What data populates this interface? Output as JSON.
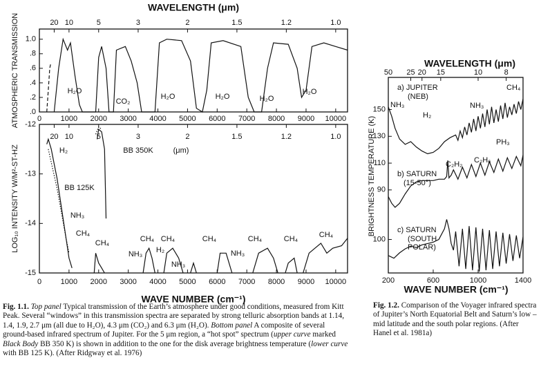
{
  "figure_1": {
    "top_axis_label": "WAVELENGTH (μm)",
    "x_label": "WAVE NUMBER (cm⁻¹)",
    "xlim": [
      0,
      10400
    ],
    "xticks": [
      0,
      1000,
      2000,
      3000,
      4000,
      5000,
      6000,
      7000,
      8000,
      9000,
      10000
    ],
    "wavelength_ticks": [
      20,
      10,
      5,
      3,
      2,
      1.5,
      1.2,
      {
        "value": 1,
        "label": "1.0"
      }
    ],
    "top": {
      "y_label": "ATMOSPHERIC TRANSMISSION",
      "ylim": [
        0,
        1.14
      ],
      "yticks": [
        {
          "value": 0,
          "label": ".0"
        },
        {
          "value": 0.2,
          "label": ".2"
        },
        {
          "value": 0.4,
          "label": ".4"
        },
        {
          "value": 0.6,
          "label": ".6"
        },
        {
          "value": 0.8,
          "label": ".8"
        },
        {
          "value": 1,
          "label": "1.0"
        }
      ],
      "annotations": [
        "H₂O",
        "CO₂",
        "H₂O",
        "H₂O",
        "H₂O",
        "H₂O"
      ],
      "curves": [
        {
          "line": "dashed",
          "x": [
            250,
            300,
            350,
            380
          ],
          "values": [
            0,
            0.3,
            0.6,
            0.66
          ]
        },
        {
          "line": "solid",
          "x": [
            500,
            650,
            800,
            950,
            1050,
            1200,
            1350,
            1450,
            1900,
            2000,
            2100,
            2250,
            2350,
            2500,
            2600,
            2900,
            3100,
            3300,
            3450,
            3900,
            4050,
            4300,
            4800,
            5100,
            5300,
            5500,
            5650,
            5800,
            6200,
            6800,
            7050,
            7250,
            7500,
            7700,
            7900,
            8400,
            8700,
            8850,
            9000,
            9200,
            9600,
            10000,
            10400
          ],
          "values": [
            0,
            0.6,
            1.0,
            0.85,
            0.95,
            0.5,
            0.1,
            0,
            0,
            0.75,
            0.9,
            0.6,
            0,
            0,
            0.85,
            0.9,
            0.7,
            0.4,
            0,
            0,
            0.95,
            1.0,
            0.98,
            0.7,
            0.05,
            0,
            0.3,
            0.95,
            0.98,
            0.9,
            0.2,
            0,
            0,
            0.6,
            0.95,
            0.93,
            0.6,
            0.2,
            0.3,
            0.9,
            0.95,
            0.9,
            0.85
          ]
        }
      ]
    },
    "bottom": {
      "y_label": "LOG₁₀ INTENSITY  W/M²-ST-HZ",
      "ylim": [
        -15,
        -12
      ],
      "yticks": [
        -12,
        -13,
        -14,
        -15
      ],
      "annotations": [
        "H₂",
        "BB 350K",
        "(μm)",
        "BB 125K",
        "NH₃",
        "CH₄",
        "CH₄",
        "CH₄",
        "CH₄",
        "NH₃",
        "H₂",
        "NH₃",
        "CH₄",
        "NH₃",
        "CH₄",
        "CH₄",
        "CH₄"
      ],
      "curves": [
        {
          "line": "solid",
          "x": [
            250,
            300,
            400,
            500,
            600,
            700,
            800,
            900,
            1000,
            1100,
            null,
            1850,
            1900,
            2000,
            2100,
            2200,
            null,
            3500,
            3600,
            3700,
            3800,
            3900,
            null,
            4200,
            4300,
            4500,
            4700,
            4850,
            null,
            5100,
            5200,
            5300,
            null,
            6000,
            6100,
            6300,
            6500,
            null,
            7200,
            7400,
            7700,
            7900,
            8050,
            null,
            8300,
            8400,
            8600,
            8700,
            null,
            8900,
            9100,
            9300,
            9500,
            9700,
            9900,
            10200,
            10400
          ],
          "values": [
            -12.4,
            -12.3,
            -12.5,
            -12.8,
            -13.1,
            -13.5,
            -13.9,
            -14.3,
            -14.7,
            -14.9,
            null,
            -15,
            -14.6,
            -14.8,
            -14.9,
            -15,
            null,
            -15,
            -14.6,
            -14.5,
            -14.7,
            -15,
            null,
            -15,
            -14.6,
            -14.5,
            -14.7,
            -15,
            null,
            -15,
            -14.8,
            -15,
            null,
            -15,
            -14.6,
            -14.6,
            -15,
            null,
            -15,
            -14.6,
            -14.5,
            -14.7,
            -15,
            null,
            -15,
            -14.8,
            -14.7,
            -15,
            null,
            -15,
            -14.6,
            -14.5,
            -14.4,
            -14.6,
            -14.5,
            -14.45,
            -14.3
          ]
        },
        {
          "line": "solid",
          "x": [
            1950,
            2000,
            2100,
            2200,
            2250
          ],
          "values": [
            -12.3,
            -12.1,
            -12.15,
            -12.5,
            -13.9
          ]
        },
        {
          "line": "dotted",
          "x": [
            300,
            600,
            900,
            1000
          ],
          "values": [
            -12.5,
            -13.3,
            -14.3,
            -14.6
          ]
        },
        {
          "line": "dotted",
          "x": [
            1900,
            2000,
            2100
          ],
          "values": [
            -12.2,
            -12.05,
            -12.1
          ]
        }
      ]
    },
    "caption": [
      "Fig. 1.1.",
      "Top panel",
      " Typical transmission of the Earth’s atmosphere under good conditions, measured from Kitt Peak. Several “windows” in this transmission spectra are separated by strong telluric absorption bands at 1.14, 1.4, 1.9, 2.7 μm (all due to H₂O), 4.3 μm (CO₂) and 6.3 μm (H₂O). ",
      "Bottom panel",
      " A composite of several ground-based infrared spectrum of Jupiter. For the 5 μm region, a “hot spot” spectrum (",
      "upper curve",
      " marked ",
      "Black Body",
      " BB 350 K) is shown in addition to the one for the disk average brightness temperature (",
      "lower curve",
      " with BB 125 K). (After Ridgway et al. 1976)"
    ]
  },
  "figure_2": {
    "top_axis_label": "WAVELENGTH (μm)",
    "x_label": "WAVE NUMBER (cm⁻¹)",
    "y_label": "BRIGHTNESS TEMPERATURE (K)",
    "xlim": [
      200,
      1400
    ],
    "xticks": [
      200,
      600,
      1000,
      1400
    ],
    "wavelength_ticks": [
      50,
      25,
      20,
      15,
      10,
      8
    ],
    "ylim": [
      28,
      174
    ],
    "yticks": [
      150,
      130,
      110,
      90
    ],
    "y2lim": [
      75,
      221
    ],
    "y2ticks": [
      100
    ],
    "annotations": [
      "a) JUPITER",
      "(NEB)",
      "NH₃",
      "H₂",
      "NH₃",
      "CH₄",
      "PH₃",
      "C₂H₂",
      "C₂H₆",
      "b) SATURN",
      "(15-50°)",
      "c) SATURN",
      "(SOUTH",
      "POLAR)"
    ],
    "series": [
      {
        "x": [
          200,
          230,
          260,
          300,
          350,
          400,
          450,
          500,
          550,
          600,
          650,
          700,
          750,
          800,
          820,
          840,
          860,
          880,
          900,
          920,
          940,
          960,
          980,
          1000,
          1020,
          1040,
          1060,
          1080,
          1100,
          1120,
          1140,
          1160,
          1180,
          1200,
          1220,
          1240,
          1260,
          1280,
          1300,
          1320,
          1340,
          1360,
          1380,
          1400
        ],
        "values": [
          152,
          145,
          136,
          128,
          124,
          126,
          122,
          119,
          117,
          118,
          121,
          126,
          129,
          131,
          127,
          134,
          129,
          137,
          131,
          140,
          133,
          143,
          134,
          145,
          136,
          147,
          137,
          150,
          139,
          152,
          140,
          150,
          141,
          153,
          143,
          155,
          144,
          152,
          146,
          154,
          147,
          156,
          150,
          158
        ]
      },
      {
        "x": [
          200,
          230,
          260,
          300,
          350,
          400,
          450,
          500,
          550,
          600,
          650,
          700,
          720,
          730,
          740,
          760,
          780,
          820,
          860,
          900,
          940,
          980,
          1020,
          1060,
          1100,
          1140,
          1180,
          1220,
          1260,
          1300,
          1340,
          1380,
          1400
        ],
        "values": [
          85,
          80,
          77,
          80,
          87,
          93,
          96,
          97,
          97,
          97,
          98,
          98,
          100,
          112,
          99,
          101,
          105,
          98,
          107,
          99,
          109,
          100,
          110,
          101,
          111,
          103,
          113,
          104,
          114,
          106,
          115,
          108,
          116
        ]
      },
      {
        "axis": "y2",
        "x": [
          200,
          250,
          300,
          350,
          400,
          450,
          500,
          550,
          600,
          650,
          700,
          720,
          740,
          760,
          780,
          800,
          830,
          860,
          890,
          920,
          950,
          980,
          1010,
          1040,
          1070,
          1100,
          1130,
          1160,
          1190,
          1220,
          1250,
          1280,
          1310,
          1340,
          1370,
          1400
        ],
        "values": [
          88,
          86,
          90,
          93,
          95,
          94,
          96,
          97,
          98,
          100,
          108,
          115,
          108,
          97,
          92,
          106,
          80,
          108,
          78,
          110,
          77,
          109,
          76,
          108,
          77,
          107,
          78,
          106,
          80,
          105,
          82,
          104,
          84,
          103,
          86,
          102
        ]
      }
    ],
    "caption": [
      "Fig. 1.2.",
      " Comparison of the Voyager infrared spectra of Jupiter’s North Equatorial Belt and Saturn’s low – mid latitude and the south polar regions. (After Hanel et al. 1981a)"
    ]
  }
}
